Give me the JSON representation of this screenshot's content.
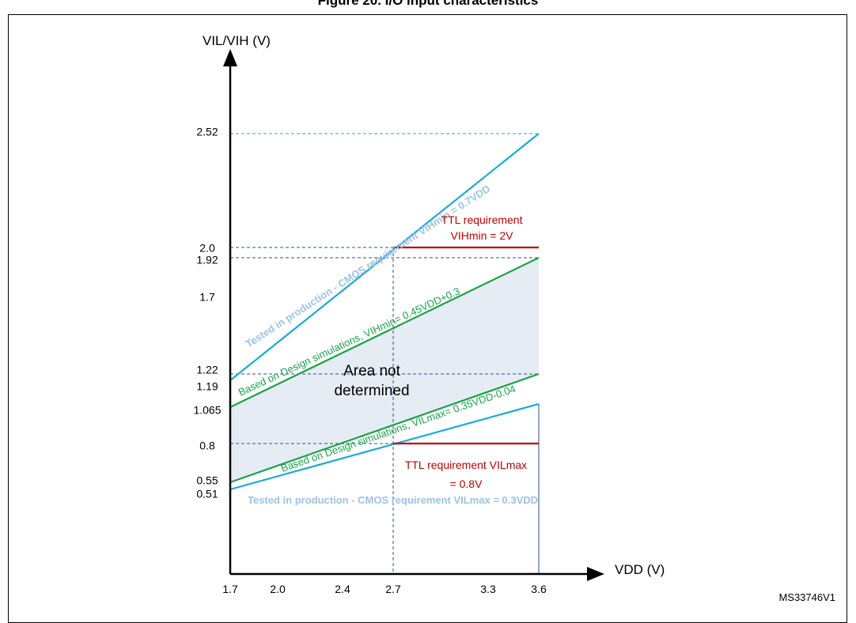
{
  "title": "Figure 20. I/O input characteristics",
  "ref_code": "MS33746V1",
  "chart_data": {
    "type": "line",
    "xlabel": "VDD (V)",
    "ylabel": "VIL/VIH (V)",
    "xlim": [
      1.7,
      3.6
    ],
    "ylim": [
      0,
      3.0
    ],
    "x_ticks": [
      1.7,
      2.0,
      2.4,
      2.7,
      3.3,
      3.6
    ],
    "x_tick_labels": [
      "1.7",
      "2.0",
      "2.4",
      "2.7",
      "3.3",
      "3.6"
    ],
    "y_ticks": [
      0.51,
      0.55,
      0.8,
      1.065,
      1.19,
      1.22,
      1.7,
      1.92,
      2.0,
      2.52
    ],
    "y_tick_labels": [
      "0.51",
      "0.55",
      "0.8",
      "1.065",
      "1.19",
      "1.22",
      "1.7",
      "1.92",
      "2.0",
      "2.52"
    ],
    "series": [
      {
        "key": "cmos_vih",
        "x": [
          1.7,
          3.6
        ],
        "y": [
          1.19,
          2.52
        ],
        "color": "#1aabd8"
      },
      {
        "key": "design_vih",
        "x": [
          1.7,
          3.6
        ],
        "y": [
          1.065,
          1.92
        ],
        "color": "#1aa34a"
      },
      {
        "key": "design_vil",
        "x": [
          1.7,
          3.6
        ],
        "y": [
          0.555,
          1.22
        ],
        "color": "#1aa34a"
      },
      {
        "key": "cmos_vil",
        "x": [
          1.7,
          3.6
        ],
        "y": [
          0.51,
          1.08
        ],
        "color": "#1aabd8"
      },
      {
        "key": "ttl_vih",
        "x": [
          2.7,
          3.6
        ],
        "y": [
          2.0,
          2.0
        ],
        "color": "#c00000"
      },
      {
        "key": "ttl_vil",
        "x": [
          2.7,
          3.6
        ],
        "y": [
          0.8,
          0.8
        ],
        "color": "#c00000"
      }
    ],
    "annotations": {
      "cmos_vih_label": "Tested in production - CMOS requirement VIHmin = 0.7VDD",
      "design_vih_label": "Based on Design simulations, VIHmin= 0.45VDD+0.3",
      "design_vil_label": "Based on Design simulations, VILmax= 0.35VDD-0.04",
      "cmos_vil_label": "Tested in production - CMOS requirement VILmax = 0.3VDD",
      "ttl_vih_line1": "TTL requirement",
      "ttl_vih_line2": "VIHmin = 2V",
      "ttl_vil_line1": "TTL requirement VILmax",
      "ttl_vil_line2": "= 0.8V",
      "area_line1": "Area not",
      "area_line2": "determined"
    },
    "colors": {
      "cmos": "#1aabd8",
      "cmos_text": "#9dc3e6",
      "design": "#1aa34a",
      "ttl": "#c00000",
      "area_fill": "#e6ecf4",
      "guide": "#2f4f8f"
    }
  }
}
